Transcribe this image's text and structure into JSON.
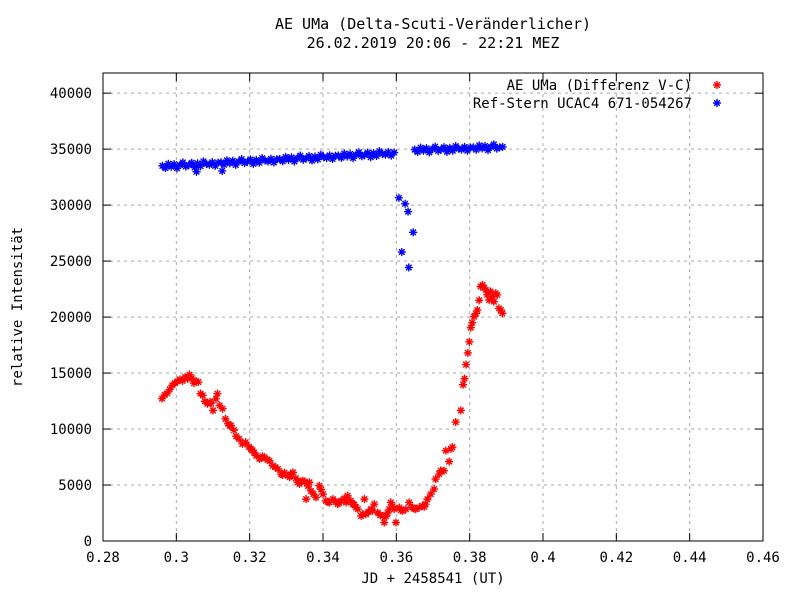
{
  "chart_data": {
    "type": "scatter",
    "title": "AE UMa (Delta-Scuti-Veränderlicher)",
    "subtitle": "26.02.2019 20:06 - 22:21 MEZ",
    "xlabel": "JD + 2458541 (UT)",
    "ylabel": "relative Intensität",
    "xlim": [
      0.28,
      0.46
    ],
    "ylim": [
      0,
      41800
    ],
    "grid": true,
    "legend_position": "top-right-inside",
    "xticks": [
      0.28,
      0.3,
      0.32,
      0.34,
      0.36,
      0.38,
      0.4,
      0.42,
      0.44,
      0.46
    ],
    "xtick_labels": [
      "0.28",
      "0.3",
      "0.32",
      "0.34",
      "0.36",
      "0.38",
      "0.4",
      "0.42",
      "0.44",
      "0.46"
    ],
    "yticks": [
      0,
      5000,
      10000,
      15000,
      20000,
      25000,
      30000,
      35000,
      40000
    ],
    "ytick_labels": [
      "0",
      "5000",
      "10000",
      "15000",
      "20000",
      "25000",
      "30000",
      "35000",
      "40000"
    ],
    "series": [
      {
        "name": "AE UMa (Differenz V-C)",
        "color": "#ff0000",
        "points": [
          [
            0.2961,
            12720
          ],
          [
            0.2968,
            13050
          ],
          [
            0.2975,
            13200
          ],
          [
            0.2982,
            13540
          ],
          [
            0.2989,
            13900
          ],
          [
            0.2996,
            14100
          ],
          [
            0.3003,
            14250
          ],
          [
            0.301,
            14430
          ],
          [
            0.3017,
            14300
          ],
          [
            0.3024,
            14650
          ],
          [
            0.3031,
            14480
          ],
          [
            0.3036,
            14860
          ],
          [
            0.3042,
            14550
          ],
          [
            0.3048,
            14100
          ],
          [
            0.3054,
            14280
          ],
          [
            0.306,
            14200
          ],
          [
            0.3066,
            13160
          ],
          [
            0.3072,
            13000
          ],
          [
            0.3078,
            12470
          ],
          [
            0.3085,
            12260
          ],
          [
            0.3092,
            12420
          ],
          [
            0.3095,
            12300
          ],
          [
            0.31,
            11660
          ],
          [
            0.3108,
            12700
          ],
          [
            0.3112,
            13160
          ],
          [
            0.3118,
            12110
          ],
          [
            0.3126,
            11810
          ],
          [
            0.3134,
            10910
          ],
          [
            0.3141,
            10470
          ],
          [
            0.3145,
            10300
          ],
          [
            0.3149,
            10320
          ],
          [
            0.3157,
            9900
          ],
          [
            0.3163,
            9360
          ],
          [
            0.3171,
            9120
          ],
          [
            0.318,
            8670
          ],
          [
            0.3189,
            8820
          ],
          [
            0.3198,
            8400
          ],
          [
            0.3204,
            8220
          ],
          [
            0.3207,
            8100
          ],
          [
            0.3212,
            7900
          ],
          [
            0.3218,
            7620
          ],
          [
            0.3227,
            7330
          ],
          [
            0.3232,
            7400
          ],
          [
            0.3235,
            7550
          ],
          [
            0.324,
            7480
          ],
          [
            0.3249,
            7250
          ],
          [
            0.3254,
            7170
          ],
          [
            0.3263,
            6720
          ],
          [
            0.327,
            6600
          ],
          [
            0.3277,
            6430
          ],
          [
            0.3286,
            5980
          ],
          [
            0.329,
            5900
          ],
          [
            0.3295,
            6100
          ],
          [
            0.3304,
            5830
          ],
          [
            0.3309,
            5700
          ],
          [
            0.3312,
            5950
          ],
          [
            0.3318,
            6130
          ],
          [
            0.3326,
            5600
          ],
          [
            0.3331,
            5240
          ],
          [
            0.3336,
            5100
          ],
          [
            0.334,
            5300
          ],
          [
            0.3345,
            5380
          ],
          [
            0.335,
            5300
          ],
          [
            0.3354,
            3740
          ],
          [
            0.3359,
            4900
          ],
          [
            0.3363,
            5240
          ],
          [
            0.3367,
            4480
          ],
          [
            0.3374,
            4200
          ],
          [
            0.3381,
            3890
          ],
          [
            0.339,
            4930
          ],
          [
            0.3395,
            4600
          ],
          [
            0.34,
            4190
          ],
          [
            0.3408,
            3590
          ],
          [
            0.3413,
            3500
          ],
          [
            0.3417,
            3440
          ],
          [
            0.3427,
            3740
          ],
          [
            0.3435,
            3500
          ],
          [
            0.344,
            3290
          ],
          [
            0.3444,
            3400
          ],
          [
            0.3449,
            3590
          ],
          [
            0.3458,
            3800
          ],
          [
            0.3463,
            3440
          ],
          [
            0.3467,
            4040
          ],
          [
            0.3476,
            3590
          ],
          [
            0.3481,
            3290
          ],
          [
            0.3485,
            3260
          ],
          [
            0.349,
            3000
          ],
          [
            0.3495,
            2840
          ],
          [
            0.3504,
            2240
          ],
          [
            0.3508,
            2400
          ],
          [
            0.3513,
            3740
          ],
          [
            0.3517,
            2390
          ],
          [
            0.3524,
            2600
          ],
          [
            0.3531,
            2840
          ],
          [
            0.3535,
            2700
          ],
          [
            0.354,
            3290
          ],
          [
            0.3549,
            2540
          ],
          [
            0.3556,
            2300
          ],
          [
            0.3563,
            2240
          ],
          [
            0.3567,
            1650
          ],
          [
            0.3572,
            2200
          ],
          [
            0.3576,
            2500
          ],
          [
            0.3581,
            2840
          ],
          [
            0.3585,
            3440
          ],
          [
            0.359,
            3100
          ],
          [
            0.3594,
            2840
          ],
          [
            0.3599,
            1650
          ],
          [
            0.3608,
            2990
          ],
          [
            0.3612,
            2750
          ],
          [
            0.3617,
            2690
          ],
          [
            0.3626,
            2840
          ],
          [
            0.3635,
            3440
          ],
          [
            0.3644,
            2990
          ],
          [
            0.3648,
            2900
          ],
          [
            0.3653,
            2840
          ],
          [
            0.3662,
            2990
          ],
          [
            0.3671,
            3140
          ],
          [
            0.3676,
            3050
          ],
          [
            0.368,
            3290
          ],
          [
            0.3685,
            3740
          ],
          [
            0.3694,
            4190
          ],
          [
            0.3703,
            4640
          ],
          [
            0.3707,
            5530
          ],
          [
            0.3717,
            5980
          ],
          [
            0.3721,
            6280
          ],
          [
            0.373,
            6280
          ],
          [
            0.3735,
            8070
          ],
          [
            0.3744,
            7090
          ],
          [
            0.3749,
            8220
          ],
          [
            0.3753,
            8380
          ],
          [
            0.3762,
            10620
          ],
          [
            0.3776,
            11660
          ],
          [
            0.3782,
            13960
          ],
          [
            0.3786,
            14500
          ],
          [
            0.379,
            15760
          ],
          [
            0.3795,
            16800
          ],
          [
            0.3799,
            17790
          ],
          [
            0.3803,
            19050
          ],
          [
            0.3807,
            19500
          ],
          [
            0.3812,
            20040
          ],
          [
            0.3817,
            20300
          ],
          [
            0.3821,
            20630
          ],
          [
            0.3826,
            21500
          ],
          [
            0.383,
            22730
          ],
          [
            0.3835,
            22870
          ],
          [
            0.384,
            22600
          ],
          [
            0.3844,
            22420
          ],
          [
            0.3848,
            22000
          ],
          [
            0.3853,
            21530
          ],
          [
            0.3857,
            22280
          ],
          [
            0.3862,
            21830
          ],
          [
            0.3866,
            21380
          ],
          [
            0.3871,
            22130
          ],
          [
            0.3875,
            21980
          ],
          [
            0.388,
            20780
          ],
          [
            0.3885,
            20630
          ],
          [
            0.3889,
            20330
          ]
        ]
      },
      {
        "name": "Ref-Stern UCAC4 671-054267",
        "color": "#0000ff",
        "points": [
          [
            0.2962,
            33510
          ],
          [
            0.297,
            33310
          ],
          [
            0.2978,
            33690
          ],
          [
            0.2986,
            33430
          ],
          [
            0.2994,
            33655
          ],
          [
            0.3002,
            33290
          ],
          [
            0.301,
            33575
          ],
          [
            0.3018,
            33810
          ],
          [
            0.3026,
            33450
          ],
          [
            0.3034,
            33560
          ],
          [
            0.3042,
            33780
          ],
          [
            0.305,
            33370
          ],
          [
            0.3055,
            32980
          ],
          [
            0.3058,
            33730
          ],
          [
            0.3066,
            33480
          ],
          [
            0.3074,
            33900
          ],
          [
            0.3082,
            33670
          ],
          [
            0.309,
            33600
          ],
          [
            0.3098,
            33830
          ],
          [
            0.3106,
            33510
          ],
          [
            0.3114,
            33790
          ],
          [
            0.3122,
            33820
          ],
          [
            0.3125,
            33050
          ],
          [
            0.313,
            33610
          ],
          [
            0.3138,
            34000
          ],
          [
            0.3146,
            33730
          ],
          [
            0.3154,
            33960
          ],
          [
            0.3162,
            33590
          ],
          [
            0.317,
            33880
          ],
          [
            0.3178,
            34110
          ],
          [
            0.3186,
            33750
          ],
          [
            0.3194,
            33870
          ],
          [
            0.3202,
            34080
          ],
          [
            0.321,
            33680
          ],
          [
            0.3218,
            34030
          ],
          [
            0.3226,
            33790
          ],
          [
            0.3234,
            34200
          ],
          [
            0.3242,
            33980
          ],
          [
            0.325,
            33900
          ],
          [
            0.3258,
            34140
          ],
          [
            0.3266,
            33810
          ],
          [
            0.3274,
            34100
          ],
          [
            0.3282,
            34120
          ],
          [
            0.329,
            33920
          ],
          [
            0.3298,
            34300
          ],
          [
            0.3306,
            34040
          ],
          [
            0.3314,
            34260
          ],
          [
            0.3322,
            33900
          ],
          [
            0.333,
            34180
          ],
          [
            0.3338,
            34420
          ],
          [
            0.3346,
            34050
          ],
          [
            0.3354,
            34170
          ],
          [
            0.3362,
            34380
          ],
          [
            0.337,
            33980
          ],
          [
            0.3378,
            34330
          ],
          [
            0.3386,
            34090
          ],
          [
            0.3394,
            34500
          ],
          [
            0.3402,
            34280
          ],
          [
            0.341,
            34210
          ],
          [
            0.3418,
            34440
          ],
          [
            0.3426,
            34120
          ],
          [
            0.3434,
            34400
          ],
          [
            0.3442,
            34430
          ],
          [
            0.345,
            34220
          ],
          [
            0.3458,
            34610
          ],
          [
            0.3466,
            34340
          ],
          [
            0.3474,
            34570
          ],
          [
            0.3482,
            34200
          ],
          [
            0.349,
            34490
          ],
          [
            0.3498,
            34720
          ],
          [
            0.3506,
            34360
          ],
          [
            0.3514,
            34470
          ],
          [
            0.3522,
            34690
          ],
          [
            0.353,
            34280
          ],
          [
            0.3538,
            34640
          ],
          [
            0.3546,
            34390
          ],
          [
            0.3554,
            34810
          ],
          [
            0.3562,
            34580
          ],
          [
            0.357,
            34510
          ],
          [
            0.3578,
            34740
          ],
          [
            0.3586,
            34420
          ],
          [
            0.3594,
            34700
          ],
          [
            0.3607,
            30650
          ],
          [
            0.3615,
            25810
          ],
          [
            0.3624,
            30120
          ],
          [
            0.3632,
            29420
          ],
          [
            0.3634,
            24430
          ],
          [
            0.3646,
            27570
          ],
          [
            0.365,
            34960
          ],
          [
            0.3658,
            34750
          ],
          [
            0.3666,
            35130
          ],
          [
            0.3674,
            34860
          ],
          [
            0.3682,
            35080
          ],
          [
            0.369,
            34710
          ],
          [
            0.3698,
            34990
          ],
          [
            0.3706,
            35220
          ],
          [
            0.3714,
            34850
          ],
          [
            0.3722,
            34960
          ],
          [
            0.373,
            35170
          ],
          [
            0.3738,
            34760
          ],
          [
            0.3746,
            35110
          ],
          [
            0.3754,
            34860
          ],
          [
            0.3762,
            35270
          ],
          [
            0.377,
            35040
          ],
          [
            0.3778,
            34960
          ],
          [
            0.3786,
            35190
          ],
          [
            0.3794,
            34860
          ],
          [
            0.3802,
            35140
          ],
          [
            0.381,
            35160
          ],
          [
            0.3818,
            34950
          ],
          [
            0.3826,
            35330
          ],
          [
            0.3834,
            35060
          ],
          [
            0.3842,
            35280
          ],
          [
            0.385,
            34910
          ],
          [
            0.3858,
            35190
          ],
          [
            0.3866,
            35420
          ],
          [
            0.3874,
            35050
          ],
          [
            0.3882,
            35160
          ],
          [
            0.389,
            35200
          ]
        ]
      }
    ]
  },
  "colors": {
    "background": "#ffffff",
    "axis": "#000000",
    "grid": "#a8a8a8",
    "text": "#000000",
    "series_variable": "#ff0000",
    "series_refstar": "#0000ff"
  }
}
